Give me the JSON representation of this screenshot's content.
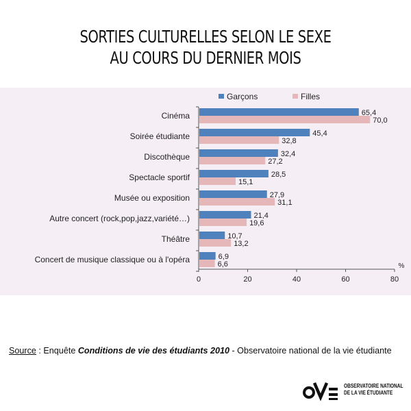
{
  "title": {
    "line1": "SORTIES CULTURELLES SELON LE SEXE",
    "line2": "AU COURS DU DERNIER MOIS"
  },
  "colors": {
    "garcons": "#4f81bd",
    "filles": "#e6b7b8",
    "panel": "#f5eef5"
  },
  "chart_data": {
    "type": "bar",
    "orientation": "horizontal",
    "title": "SORTIES CULTURELLES SELON LE SEXE AU COURS DU DERNIER MOIS",
    "categories": [
      "Cinéma",
      "Soirée étudiante",
      "Discothèque",
      "Spectacle sportif",
      "Musée ou exposition",
      "Autre concert (rock,pop,jazz,variété…)",
      "Théâtre",
      "Concert de musique classique ou à l'opéra"
    ],
    "series": [
      {
        "name": "Garçons",
        "values": [
          65.4,
          45.4,
          32.4,
          28.5,
          27.9,
          21.4,
          10.7,
          6.9
        ],
        "labels": [
          "65,4",
          "45,4",
          "32,4",
          "28,5",
          "27,9",
          "21,4",
          "10,7",
          "6,9"
        ]
      },
      {
        "name": "Filles",
        "values": [
          70.0,
          32.8,
          27.2,
          15.1,
          31.1,
          19.6,
          13.2,
          6.6
        ],
        "labels": [
          "70,0",
          "32,8",
          "27,2",
          "15,1",
          "31,1",
          "19,6",
          "13,2",
          "6,6"
        ]
      }
    ],
    "xlim": [
      0,
      80
    ],
    "xticks": [
      0,
      20,
      40,
      60,
      80
    ],
    "x_unit": "%",
    "legend_position": "top",
    "grid": false
  },
  "source": {
    "prefix": "Source",
    "mid": " : Enquête ",
    "survey": "Conditions de vie des étudiants 2010",
    "suffix": " - Observatoire national de la vie étudiante"
  },
  "logo": {
    "line1": "OBSERVATOIRE NATIONAL",
    "line2": "DE LA VIE ÉTUDIANTE"
  }
}
